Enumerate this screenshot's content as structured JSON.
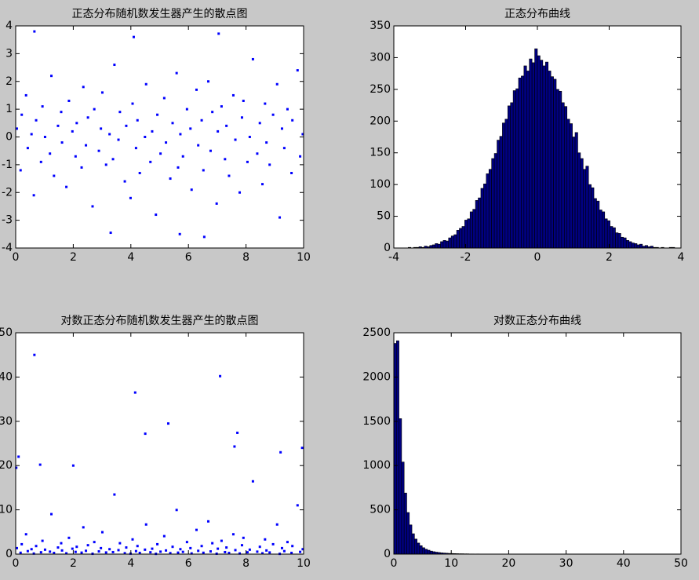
{
  "chart_data": [
    {
      "type": "scatter",
      "title": "正态分布随机数发生器产生的散点图",
      "color": "#0000ff",
      "xlim": [
        0,
        10
      ],
      "ylim": [
        -4,
        4
      ],
      "xticks": [
        0,
        2,
        4,
        6,
        8,
        10
      ],
      "yticks": [
        -4,
        -3,
        -2,
        -1,
        0,
        1,
        2,
        3,
        4
      ],
      "x": [
        0.04,
        0.17,
        0.21,
        0.36,
        0.42,
        0.55,
        0.63,
        0.71,
        0.88,
        0.93,
        1.02,
        1.19,
        1.24,
        1.33,
        1.47,
        1.58,
        1.61,
        1.76,
        1.85,
        1.97,
        2.08,
        2.12,
        2.29,
        2.35,
        2.44,
        2.51,
        2.67,
        2.73,
        2.89,
        2.96,
        3.01,
        3.14,
        3.26,
        3.38,
        3.43,
        3.57,
        3.62,
        3.79,
        3.84,
        3.99,
        4.06,
        4.18,
        4.23,
        4.31,
        4.49,
        4.53,
        4.68,
        4.74,
        4.87,
        4.92,
        5.03,
        5.16,
        5.22,
        5.37,
        5.45,
        5.59,
        5.64,
        5.72,
        5.81,
        5.95,
        6.07,
        6.11,
        6.28,
        6.34,
        6.46,
        6.52,
        6.69,
        6.77,
        6.83,
        6.98,
        7.02,
        7.15,
        7.27,
        7.32,
        7.41,
        7.56,
        7.63,
        7.78,
        7.86,
        7.91,
        8.05,
        8.13,
        8.24,
        8.39,
        8.48,
        8.57,
        8.66,
        8.71,
        8.82,
        8.94,
        9.08,
        9.17,
        9.25,
        9.33,
        9.44,
        9.58,
        9.61,
        9.79,
        9.88,
        9.97,
        0.65,
        7.05,
        4.1,
        3.3,
        6.55,
        5.7
      ],
      "values": [
        0.3,
        -1.2,
        0.8,
        1.5,
        -0.4,
        0.1,
        -2.1,
        0.6,
        -0.9,
        1.1,
        0.0,
        -0.6,
        2.2,
        -1.4,
        0.4,
        0.9,
        -0.2,
        -1.8,
        1.3,
        0.2,
        -0.7,
        0.5,
        -1.1,
        1.8,
        -0.3,
        0.7,
        -2.5,
        1.0,
        -0.5,
        0.3,
        1.6,
        -1.0,
        0.1,
        -0.8,
        2.6,
        -0.1,
        0.9,
        -1.6,
        0.4,
        -2.2,
        1.2,
        -0.4,
        0.6,
        -1.3,
        0.0,
        1.9,
        -0.9,
        0.2,
        -2.8,
        0.8,
        -0.6,
        1.4,
        -0.2,
        -1.5,
        0.5,
        2.3,
        -1.1,
        0.1,
        -0.7,
        1.0,
        0.3,
        -1.9,
        1.7,
        -0.3,
        0.6,
        -1.2,
        2.0,
        -0.5,
        0.9,
        -2.4,
        0.2,
        1.1,
        -0.8,
        0.4,
        -1.4,
        1.5,
        -0.1,
        -2.0,
        0.7,
        1.3,
        -0.9,
        0.0,
        2.8,
        -0.6,
        0.5,
        -1.7,
        1.2,
        -0.2,
        -1.0,
        0.8,
        1.9,
        -2.9,
        0.3,
        -0.4,
        1.0,
        -1.3,
        0.6,
        2.4,
        -0.7,
        0.1,
        3.8,
        3.72,
        3.6,
        -3.45,
        -3.6,
        -3.5
      ]
    },
    {
      "type": "histogram",
      "title": "正态分布曲线",
      "color": "#000080",
      "xlim": [
        -4,
        4
      ],
      "ylim": [
        0,
        350
      ],
      "xticks": [
        -4,
        -2,
        0,
        2,
        4
      ],
      "yticks": [
        0,
        50,
        100,
        150,
        200,
        250,
        300,
        350
      ],
      "bins": [
        -3.6,
        -3.525,
        -3.45,
        -3.375,
        -3.3,
        -3.225,
        -3.15,
        -3.075,
        -3,
        -2.925,
        -2.85,
        -2.775,
        -2.7,
        -2.625,
        -2.55,
        -2.475,
        -2.4,
        -2.325,
        -2.25,
        -2.175,
        -2.1,
        -2.025,
        -1.95,
        -1.875,
        -1.8,
        -1.725,
        -1.65,
        -1.575,
        -1.5,
        -1.425,
        -1.35,
        -1.275,
        -1.2,
        -1.125,
        -1.05,
        -0.975,
        -0.9,
        -0.825,
        -0.75,
        -0.675,
        -0.6,
        -0.525,
        -0.45,
        -0.375,
        -0.3,
        -0.225,
        -0.15,
        -0.075,
        0,
        0.075,
        0.15,
        0.225,
        0.3,
        0.375,
        0.45,
        0.525,
        0.6,
        0.675,
        0.75,
        0.825,
        0.9,
        0.975,
        1.05,
        1.125,
        1.2,
        1.275,
        1.35,
        1.425,
        1.5,
        1.575,
        1.65,
        1.725,
        1.8,
        1.875,
        1.95,
        2.025,
        2.1,
        2.175,
        2.25,
        2.325,
        2.4,
        2.475,
        2.55,
        2.625,
        2.7,
        2.775,
        2.85,
        2.925,
        3,
        3.075,
        3.15,
        3.225,
        3.3,
        3.375,
        3.45,
        3.525,
        3.6,
        3.675,
        3.75,
        3.825,
        3.9
      ],
      "values": [
        1,
        0,
        1,
        1,
        2,
        1,
        3,
        2,
        4,
        5,
        7,
        6,
        10,
        12,
        11,
        16,
        19,
        21,
        28,
        31,
        34,
        44,
        46,
        57,
        61,
        75,
        79,
        94,
        101,
        117,
        124,
        141,
        149,
        170,
        176,
        197,
        203,
        224,
        229,
        248,
        251,
        268,
        271,
        287,
        279,
        298,
        292,
        314,
        303,
        296,
        287,
        293,
        279,
        270,
        266,
        250,
        247,
        229,
        223,
        203,
        196,
        175,
        182,
        150,
        141,
        124,
        129,
        100,
        95,
        78,
        74,
        60,
        57,
        46,
        43,
        34,
        32,
        24,
        23,
        17,
        16,
        12,
        10,
        8,
        7,
        5,
        6,
        3,
        4,
        2,
        3,
        1,
        1,
        0,
        1,
        0,
        0,
        1,
        1,
        0
      ]
    },
    {
      "type": "scatter",
      "title": "对数正态分布随机数发生器产生的散点图",
      "color": "#0000ff",
      "xlim": [
        0,
        10
      ],
      "ylim": [
        0,
        50
      ],
      "xticks": [
        0,
        2,
        4,
        6,
        8,
        10
      ],
      "yticks": [
        0,
        10,
        20,
        30,
        40,
        50
      ],
      "x": [
        0.04,
        0.17,
        0.21,
        0.36,
        0.42,
        0.55,
        0.63,
        0.71,
        0.88,
        0.93,
        1.02,
        1.19,
        1.24,
        1.33,
        1.47,
        1.58,
        1.61,
        1.76,
        1.85,
        1.97,
        2.08,
        2.12,
        2.29,
        2.35,
        2.44,
        2.51,
        2.67,
        2.73,
        2.89,
        2.96,
        3.01,
        3.14,
        3.26,
        3.38,
        3.43,
        3.57,
        3.62,
        3.79,
        3.84,
        3.99,
        4.06,
        4.18,
        4.23,
        4.31,
        4.49,
        4.53,
        4.68,
        4.74,
        4.87,
        4.92,
        5.03,
        5.16,
        5.22,
        5.37,
        5.45,
        5.59,
        5.64,
        5.72,
        5.81,
        5.95,
        6.07,
        6.11,
        6.28,
        6.34,
        6.46,
        6.52,
        6.69,
        6.77,
        6.83,
        6.98,
        7.02,
        7.15,
        7.27,
        7.32,
        7.41,
        7.56,
        7.63,
        7.78,
        7.86,
        7.91,
        8.05,
        8.13,
        8.24,
        8.39,
        8.48,
        8.57,
        8.66,
        8.71,
        8.82,
        8.94,
        9.08,
        9.17,
        9.25,
        9.33,
        9.44,
        9.58,
        9.61,
        9.79,
        9.88,
        9.97,
        0.65,
        7.1,
        4.15,
        5.3,
        4.5,
        7.7,
        9.95,
        9.2,
        0.1,
        0.85,
        2.0,
        0.02,
        7.6
      ],
      "values": [
        1.35,
        0.3,
        2.23,
        4.48,
        0.67,
        1.11,
        0.12,
        1.82,
        0.41,
        3.0,
        1.0,
        0.55,
        9.03,
        0.25,
        1.49,
        2.46,
        0.82,
        0.17,
        3.67,
        1.22,
        0.5,
        1.65,
        0.33,
        6.05,
        0.74,
        2.01,
        0.08,
        2.72,
        0.61,
        1.35,
        4.95,
        0.37,
        1.11,
        0.45,
        13.46,
        0.9,
        2.46,
        0.2,
        1.49,
        0.11,
        3.32,
        0.67,
        1.82,
        0.27,
        1.0,
        6.69,
        0.41,
        1.22,
        0.06,
        2.23,
        0.55,
        4.06,
        0.82,
        0.22,
        1.65,
        9.97,
        0.33,
        1.11,
        0.5,
        2.72,
        1.35,
        0.15,
        5.47,
        0.74,
        1.82,
        0.3,
        7.39,
        0.61,
        2.46,
        0.09,
        1.22,
        3.0,
        0.45,
        1.49,
        0.25,
        4.48,
        0.9,
        0.14,
        2.01,
        3.67,
        0.41,
        1.0,
        16.44,
        0.55,
        1.65,
        0.18,
        3.32,
        0.82,
        0.37,
        2.23,
        6.69,
        0.06,
        1.35,
        0.67,
        2.72,
        0.27,
        1.82,
        11.02,
        0.5,
        1.11,
        45,
        40.2,
        36.5,
        29.5,
        27.2,
        27.4,
        24,
        23,
        22,
        20.2,
        20,
        19.5,
        24.3
      ]
    },
    {
      "type": "histogram",
      "title": "对数正态分布曲线",
      "color": "#000080",
      "xlim": [
        0,
        50
      ],
      "ylim": [
        0,
        2500
      ],
      "xticks": [
        0,
        10,
        20,
        30,
        40,
        50
      ],
      "yticks": [
        0,
        500,
        1000,
        1500,
        2000,
        2500
      ],
      "bins": [
        0,
        0.45,
        0.9,
        1.35,
        1.8,
        2.25,
        2.7,
        3.15,
        3.6,
        4.05,
        4.5,
        4.95,
        5.4,
        5.85,
        6.3,
        6.75,
        7.2,
        7.65,
        8.1,
        8.55,
        9,
        9.45,
        9.9,
        10.35,
        10.8,
        11.25,
        11.7,
        12.15,
        12.6,
        13.05,
        13.5,
        13.95,
        14.4,
        14.85,
        15.3,
        15.75,
        16.2,
        16.65,
        17.1,
        17.55,
        18,
        18.45,
        18.9,
        19.35,
        19.8,
        20.25,
        20.7,
        21.15,
        21.6,
        22.05,
        22.5,
        22.95,
        23.4,
        23.85,
        24.3,
        24.75,
        25.2,
        25.65,
        26.1,
        26.55,
        27,
        27.45,
        27.9,
        28.35,
        28.8,
        29.25,
        29.7,
        30.15,
        30.6,
        31.05,
        31.5,
        31.95,
        32.4,
        32.85,
        33.3,
        33.75,
        34.2,
        34.65,
        35.1,
        35.55,
        36,
        36.45,
        36.9,
        37.35,
        37.8,
        38.25,
        38.7,
        39.15,
        39.6,
        40.05,
        40.5,
        40.95,
        41.4,
        41.85,
        42.3,
        42.75,
        43.2,
        43.65,
        44.1,
        44.55,
        45
      ],
      "values": [
        2380,
        2410,
        1530,
        1040,
        690,
        470,
        330,
        230,
        170,
        125,
        95,
        72,
        55,
        44,
        34,
        27,
        22,
        18,
        14,
        12,
        10,
        8,
        7,
        6,
        5,
        4,
        4,
        3,
        3,
        2,
        2,
        1,
        2,
        1,
        1,
        1,
        0,
        1,
        1,
        0,
        1,
        0,
        1,
        0,
        0,
        1,
        0,
        0,
        1,
        0,
        0,
        1,
        0,
        0,
        0,
        1,
        0,
        0,
        0,
        0,
        1,
        0,
        0,
        0,
        0,
        0,
        1,
        0,
        0,
        0,
        0,
        0,
        0,
        0,
        1,
        0,
        0,
        0,
        0,
        0,
        0,
        0,
        0,
        0,
        0,
        1,
        0,
        0,
        0,
        0,
        0,
        0,
        0,
        0,
        0,
        0,
        0,
        0,
        0,
        1
      ]
    }
  ]
}
